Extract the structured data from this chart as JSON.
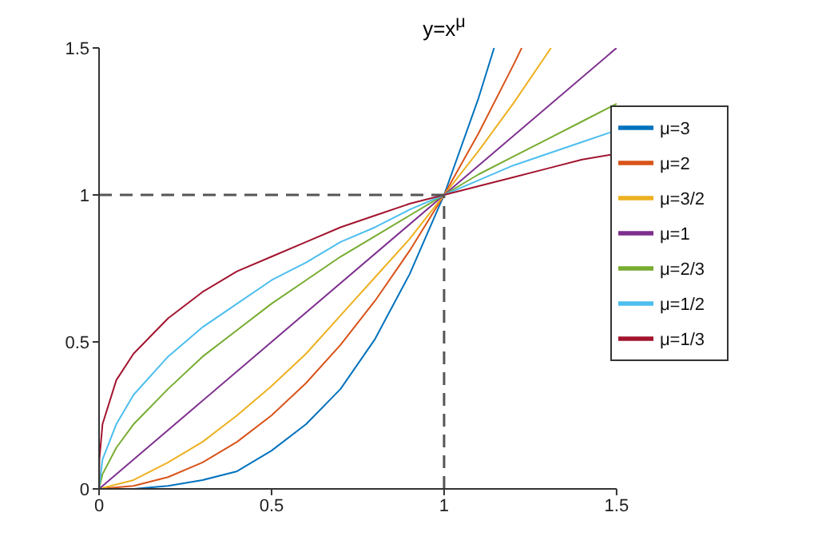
{
  "chart_data": {
    "type": "line",
    "title": "y=x$^{μ}$",
    "xlim": [
      0,
      1.5
    ],
    "xticks": [
      0,
      0.5,
      1,
      1.5
    ],
    "ylim": [
      0,
      1.5
    ],
    "yticks": [
      0,
      0.5,
      1,
      1.5
    ],
    "grid": false,
    "legend": "top right",
    "marker": "none",
    "line_style": "solid",
    "series": [
      {
        "name": "μ=3",
        "color": "#0072bd",
        "x": [
          0,
          0.1,
          0.2,
          0.3,
          0.4,
          0.5,
          0.6,
          0.7,
          0.8,
          0.9,
          1,
          1.1,
          1.145
        ],
        "values": [
          0,
          0,
          0.01,
          0.03,
          0.06,
          0.13,
          0.22,
          0.34,
          0.51,
          0.73,
          1,
          1.33,
          1.5
        ]
      },
      {
        "name": "μ=2",
        "color": "#d95319",
        "x": [
          0,
          0.1,
          0.2,
          0.3,
          0.4,
          0.5,
          0.6,
          0.7,
          0.8,
          0.9,
          1,
          1.1,
          1.2,
          1.225
        ],
        "values": [
          0,
          0.01,
          0.04,
          0.09,
          0.16,
          0.25,
          0.36,
          0.49,
          0.64,
          0.81,
          1,
          1.21,
          1.44,
          1.5
        ]
      },
      {
        "name": "μ=3/2",
        "color": "#edb120",
        "x": [
          0,
          0.1,
          0.2,
          0.3,
          0.4,
          0.5,
          0.6,
          0.7,
          0.8,
          0.9,
          1,
          1.1,
          1.2,
          1.31
        ],
        "values": [
          0,
          0.03,
          0.09,
          0.16,
          0.25,
          0.35,
          0.46,
          0.59,
          0.72,
          0.85,
          1,
          1.15,
          1.31,
          1.5
        ]
      },
      {
        "name": "μ=1",
        "color": "#7e2f8e",
        "x": [
          0,
          0.5,
          1,
          1.5
        ],
        "values": [
          0,
          0.5,
          1,
          1.5
        ]
      },
      {
        "name": "μ=2/3",
        "color": "#77ac30",
        "x": [
          0,
          0.01,
          0.05,
          0.1,
          0.2,
          0.3,
          0.4,
          0.5,
          0.6,
          0.7,
          0.8,
          0.9,
          1,
          1.1,
          1.2,
          1.3,
          1.4,
          1.5
        ],
        "values": [
          0,
          0.05,
          0.14,
          0.22,
          0.34,
          0.45,
          0.54,
          0.63,
          0.71,
          0.79,
          0.86,
          0.93,
          1,
          1.07,
          1.13,
          1.19,
          1.25,
          1.31
        ]
      },
      {
        "name": "μ=1/2",
        "color": "#4dbeee",
        "x": [
          0,
          0.01,
          0.05,
          0.1,
          0.2,
          0.3,
          0.4,
          0.5,
          0.6,
          0.7,
          0.8,
          0.9,
          1,
          1.1,
          1.2,
          1.3,
          1.4,
          1.5
        ],
        "values": [
          0,
          0.1,
          0.22,
          0.32,
          0.45,
          0.55,
          0.63,
          0.71,
          0.77,
          0.84,
          0.89,
          0.95,
          1,
          1.05,
          1.1,
          1.14,
          1.18,
          1.22
        ]
      },
      {
        "name": "μ=1/3",
        "color": "#a2142f",
        "x": [
          0,
          0.001,
          0.01,
          0.05,
          0.1,
          0.2,
          0.3,
          0.4,
          0.5,
          0.6,
          0.7,
          0.8,
          0.9,
          1,
          1.1,
          1.2,
          1.3,
          1.4,
          1.5
        ],
        "values": [
          0,
          0.1,
          0.22,
          0.37,
          0.46,
          0.58,
          0.67,
          0.74,
          0.79,
          0.84,
          0.89,
          0.93,
          0.97,
          1,
          1.03,
          1.06,
          1.09,
          1.12,
          1.14
        ]
      },
      {
        "color": "#555555",
        "line_style": "dashed",
        "x": [
          0,
          1
        ],
        "values": [
          1,
          1
        ]
      },
      {
        "color": "#555555",
        "line_style": "dashed",
        "x": [
          1,
          1
        ],
        "values": [
          0,
          1
        ]
      }
    ]
  }
}
